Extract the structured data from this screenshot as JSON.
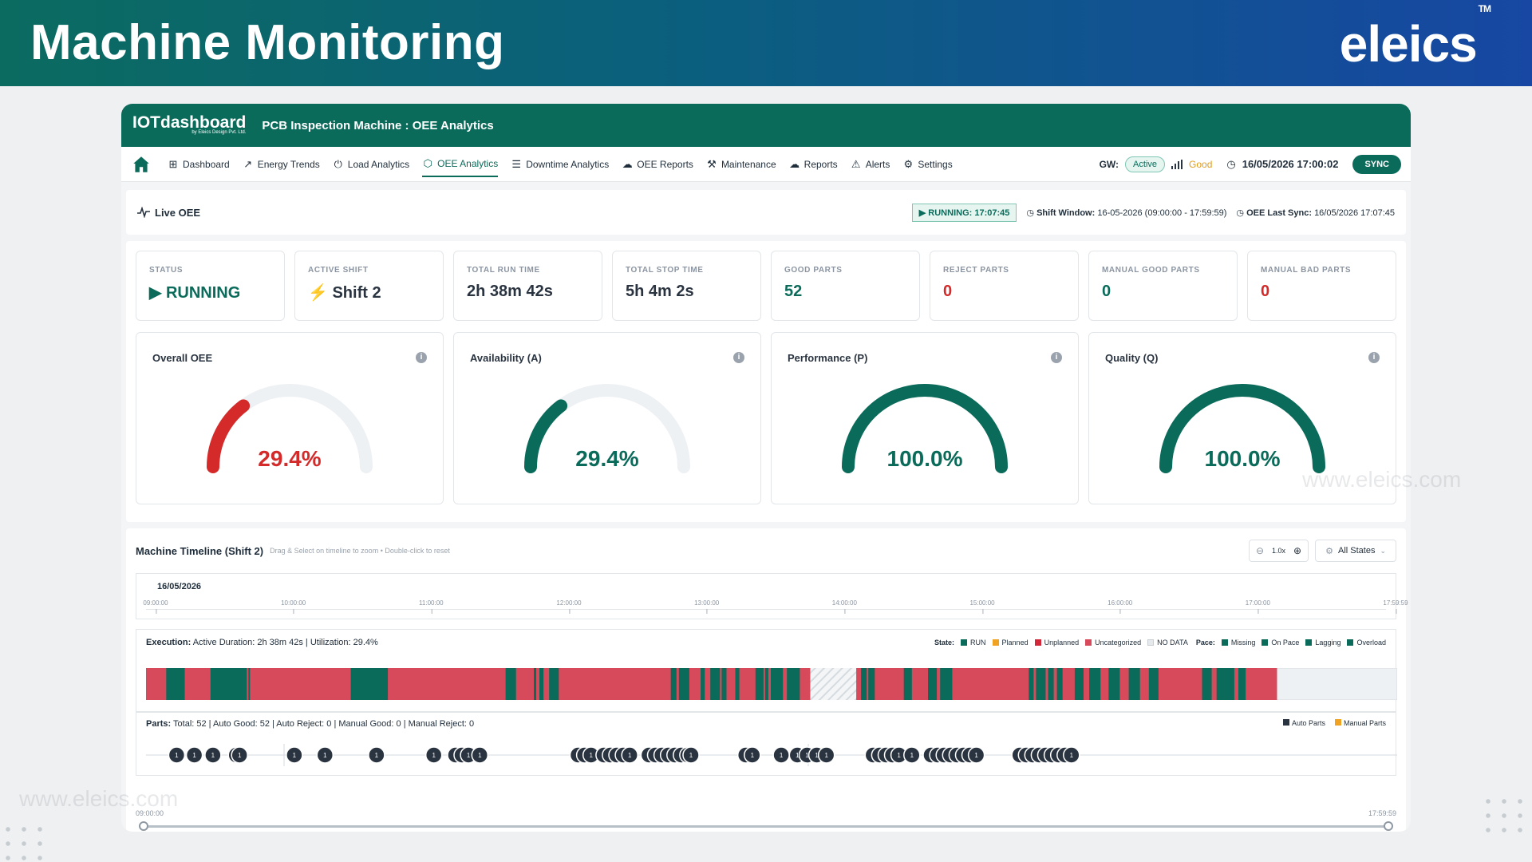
{
  "banner": {
    "title": "Machine Monitoring",
    "brand": "eleics",
    "tm": "TM"
  },
  "app": {
    "logo": "IOTdashboard",
    "logo_sub": "by Eleics Design Pvt. Ltd.",
    "title": "PCB Inspection Machine : OEE Analytics"
  },
  "nav": {
    "items": [
      {
        "label": "Dashboard",
        "icon": "grid-icon"
      },
      {
        "label": "Energy Trends",
        "icon": "chart-line-icon"
      },
      {
        "label": "Load Analytics",
        "icon": "power-icon"
      },
      {
        "label": "OEE Analytics",
        "icon": "cube-icon"
      },
      {
        "label": "Downtime Analytics",
        "icon": "list-icon"
      },
      {
        "label": "OEE Reports",
        "icon": "cloud-icon"
      },
      {
        "label": "Maintenance",
        "icon": "wrench-icon"
      },
      {
        "label": "Reports",
        "icon": "cloud-icon"
      },
      {
        "label": "Alerts",
        "icon": "warning-icon"
      },
      {
        "label": "Settings",
        "icon": "gear-icon"
      }
    ],
    "active_index": 3,
    "gw_label": "GW:",
    "gw_status": "Active",
    "signal": "Good",
    "datetime": "16/05/2026 17:00:02",
    "sync": "SYNC"
  },
  "live": {
    "label": "Live OEE",
    "running": "RUNNING: 17:07:45",
    "shift_window_label": "Shift Window:",
    "shift_window": "16-05-2026 (09:00:00 - 17:59:59)",
    "last_sync_label": "OEE Last Sync:",
    "last_sync": "16/05/2026 17:07:45"
  },
  "kpis": [
    {
      "label": "STATUS",
      "value": "RUNNING",
      "color": "#0b6b5a"
    },
    {
      "label": "ACTIVE SHIFT",
      "value": "Shift 2",
      "color": "#2a3440"
    },
    {
      "label": "TOTAL RUN TIME",
      "value": "2h 38m 42s",
      "color": "#2a3440"
    },
    {
      "label": "TOTAL STOP TIME",
      "value": "5h 4m 2s",
      "color": "#2a3440"
    },
    {
      "label": "GOOD PARTS",
      "value": "52",
      "color": "#0b6b5a"
    },
    {
      "label": "REJECT PARTS",
      "value": "0",
      "color": "#d42a2a"
    },
    {
      "label": "MANUAL GOOD PARTS",
      "value": "0",
      "color": "#0b6b5a"
    },
    {
      "label": "MANUAL BAD PARTS",
      "value": "0",
      "color": "#d42a2a"
    }
  ],
  "gauges": [
    {
      "title": "Overall OEE",
      "value": 29.4,
      "display": "29.4%",
      "color": "#d42a2a"
    },
    {
      "title": "Availability (A)",
      "value": 29.4,
      "display": "29.4%",
      "color": "#0b6b5a"
    },
    {
      "title": "Performance (P)",
      "value": 100.0,
      "display": "100.0%",
      "color": "#0b6b5a"
    },
    {
      "title": "Quality (Q)",
      "value": 100.0,
      "display": "100.0%",
      "color": "#0b6b5a"
    }
  ],
  "timeline": {
    "title": "Machine Timeline (Shift 2)",
    "hint": "Drag & Select on timeline to zoom • Double-click to reset",
    "zoom": "1.0x",
    "states_button": "All States",
    "date": "16/05/2026",
    "ticks": [
      "09:00:00",
      "10:00:00",
      "11:00:00",
      "12:00:00",
      "13:00:00",
      "14:00:00",
      "15:00:00",
      "16:00:00",
      "17:00:00",
      "17:59:59"
    ],
    "execution_label": "Execution:",
    "execution_text": "Active Duration: 2h 38m 42s  |  Utilization: 29.4%",
    "state_legend_label": "State:",
    "state_legend": [
      {
        "name": "RUN",
        "color": "#0b6b5a"
      },
      {
        "name": "Planned",
        "color": "#f0a323"
      },
      {
        "name": "Unplanned",
        "color": "#d3283a"
      },
      {
        "name": "Uncategorized",
        "color": "#d64a5c"
      },
      {
        "name": "NO DATA",
        "color": "#e6e9ec"
      }
    ],
    "pace_legend_label": "Pace:",
    "pace_legend": [
      {
        "name": "Missing",
        "color": "#0b6b5a"
      },
      {
        "name": "On Pace",
        "color": "#0b6b5a"
      },
      {
        "name": "Lagging",
        "color": "#0b6b5a"
      },
      {
        "name": "Overload",
        "color": "#0b6b5a"
      }
    ],
    "parts_label": "Parts:",
    "parts_text": "Total: 52  |  Auto Good: 52  |  Auto Reject: 0  |  Manual Good: 0  |  Manual Reject: 0",
    "parts_legend": [
      {
        "name": "Auto Parts",
        "color": "#2a3440"
      },
      {
        "name": "Manual Parts",
        "color": "#f0a323"
      }
    ],
    "part_marker_label": "1",
    "range_start": "09:00:00",
    "range_end": "17:59:59"
  },
  "watermark": "www.eleics.com"
}
